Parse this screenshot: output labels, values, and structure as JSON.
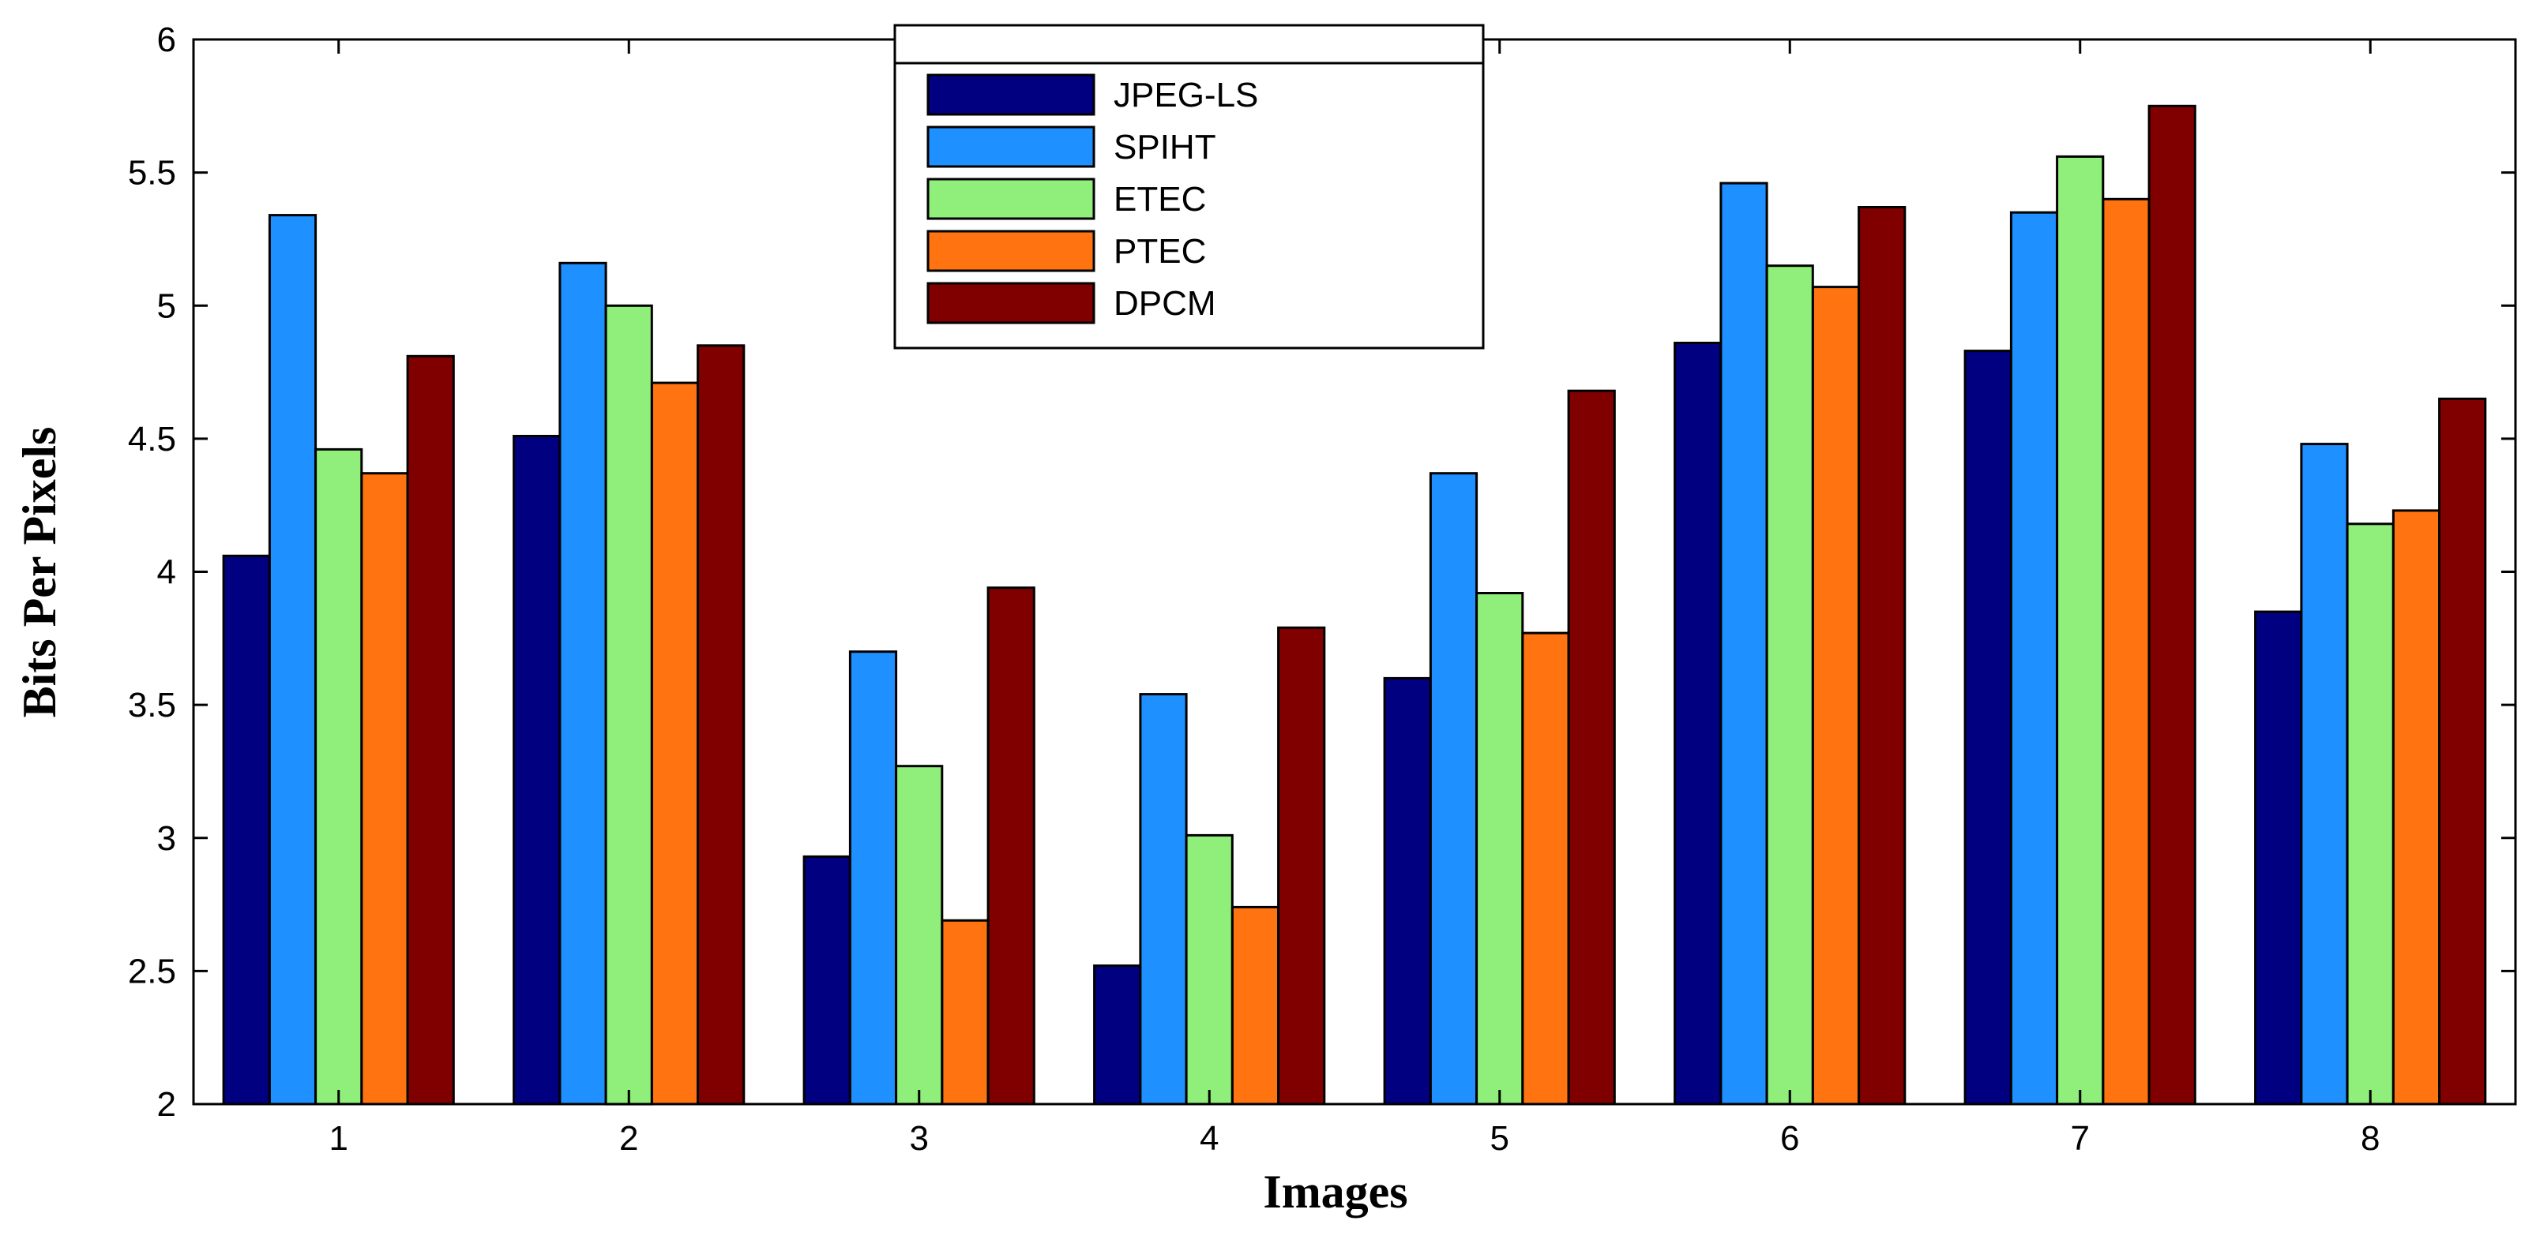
{
  "chart_data": {
    "type": "bar",
    "title": "",
    "xlabel": "Images",
    "ylabel": "Bits Per Pixels",
    "ylim": [
      2,
      6
    ],
    "yticks": [
      2,
      2.5,
      3,
      3.5,
      4,
      4.5,
      5,
      5.5,
      6
    ],
    "ytick_labels": [
      "2",
      "2.5",
      "3",
      "3.5",
      "4",
      "4.5",
      "5",
      "5.5",
      "6"
    ],
    "categories": [
      "1",
      "2",
      "3",
      "4",
      "5",
      "6",
      "7",
      "8"
    ],
    "legend_position": "top-center",
    "grid": false,
    "series": [
      {
        "name": "JPEG-LS",
        "color": "#000080",
        "values": [
          4.06,
          4.51,
          2.93,
          2.52,
          3.6,
          4.86,
          4.83,
          3.85
        ]
      },
      {
        "name": "SPIHT",
        "color": "#1e90ff",
        "values": [
          5.34,
          5.16,
          3.7,
          3.54,
          4.37,
          5.46,
          5.35,
          4.48
        ]
      },
      {
        "name": "ETEC",
        "color": "#90ee7a",
        "values": [
          4.46,
          5.0,
          3.27,
          3.01,
          3.92,
          5.15,
          5.56,
          4.18
        ]
      },
      {
        "name": "PTEC",
        "color": "#ff7410",
        "values": [
          4.37,
          4.71,
          2.69,
          2.74,
          3.77,
          5.07,
          5.4,
          4.23
        ]
      },
      {
        "name": "DPCM",
        "color": "#800000",
        "values": [
          4.81,
          4.85,
          3.94,
          3.79,
          4.68,
          5.37,
          5.75,
          4.65
        ]
      }
    ]
  }
}
